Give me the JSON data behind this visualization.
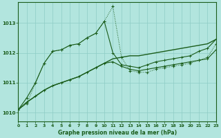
{
  "title": "Graphe pression niveau de la mer (hPa)",
  "background_color": "#b2e5de",
  "grid_color": "#8eccc5",
  "line_color": "#1a5c1a",
  "xlim": [
    0,
    23
  ],
  "ylim": [
    1009.7,
    1013.7
  ],
  "yticks": [
    1010,
    1011,
    1012,
    1013
  ],
  "xticks": [
    0,
    1,
    2,
    3,
    4,
    5,
    6,
    7,
    8,
    9,
    10,
    11,
    12,
    13,
    14,
    15,
    16,
    17,
    18,
    19,
    20,
    21,
    22,
    23
  ],
  "hours": [
    0,
    1,
    2,
    3,
    4,
    5,
    6,
    7,
    8,
    9,
    10,
    11,
    12,
    13,
    14,
    15,
    16,
    17,
    18,
    19,
    20,
    21,
    22,
    23
  ],
  "series_dotted": [
    1010.1,
    1010.3,
    1011.0,
    1011.65,
    1012.05,
    1012.1,
    1012.25,
    1012.3,
    1012.5,
    1012.65,
    1013.05,
    1013.55,
    1011.85,
    1011.4,
    1011.35,
    1011.35,
    1011.45,
    1011.5,
    1011.55,
    1011.6,
    1011.65,
    1011.75,
    1011.85,
    1012.3
  ],
  "series_smooth_rise": [
    1010.1,
    1010.35,
    1010.55,
    1010.75,
    1010.9,
    1011.0,
    1011.1,
    1011.2,
    1011.35,
    1011.5,
    1011.65,
    1011.8,
    1011.85,
    1011.9,
    1011.9,
    1011.95,
    1012.0,
    1012.05,
    1012.1,
    1012.15,
    1012.2,
    1012.25,
    1012.3,
    1012.45
  ],
  "series_upper_env": [
    1010.1,
    1010.5,
    1011.0,
    1011.65,
    1012.05,
    1012.1,
    1012.25,
    1012.3,
    1012.5,
    1012.65,
    1013.05,
    1012.0,
    1011.6,
    1011.55,
    1011.5,
    1011.6,
    1011.7,
    1011.75,
    1011.8,
    1011.85,
    1011.9,
    1012.05,
    1012.15,
    1012.45
  ],
  "series_lower_env": [
    1010.1,
    1010.35,
    1010.55,
    1010.75,
    1010.9,
    1011.0,
    1011.1,
    1011.2,
    1011.35,
    1011.5,
    1011.65,
    1011.7,
    1011.55,
    1011.45,
    1011.4,
    1011.45,
    1011.5,
    1011.55,
    1011.6,
    1011.65,
    1011.7,
    1011.75,
    1011.8,
    1012.1
  ]
}
